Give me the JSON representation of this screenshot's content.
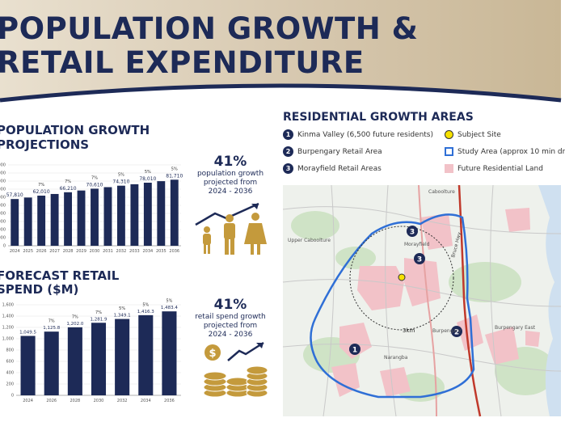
{
  "header": {
    "title_line1": "POPULATION GROWTH &",
    "title_line2": "RETAIL EXPENDITURE"
  },
  "population": {
    "title_line1": "POPULATION GROWTH",
    "title_line2": "PROJECTIONS",
    "stat": {
      "value": "41%",
      "line1": "population growth",
      "line2": "projected from",
      "line3": "2024 - 2036"
    }
  },
  "retail": {
    "title_line1": "FORECAST RETAIL",
    "title_line2": "SPEND ($M)",
    "stat": {
      "value": "41%",
      "line1": "retail spend growth",
      "line2": "projected from",
      "line3": "2024 - 2036"
    }
  },
  "residential": {
    "title": "RESIDENTIAL GROWTH AREAS",
    "legend": [
      {
        "symbol": "1",
        "label": "Kinma Valley (6,500 future residents)"
      },
      {
        "symbol": "2",
        "label": "Burpengary Retail Area"
      },
      {
        "symbol": "3",
        "label": "Morayfield Retail Areas"
      },
      {
        "symbol": "subject-site",
        "label": "Subject Site"
      },
      {
        "symbol": "study-area",
        "label": "Study Area (approx 10 min dr"
      },
      {
        "symbol": "future-residential",
        "label": "Future Residential Land"
      }
    ],
    "map_labels": {
      "caboolture": "Caboolture",
      "upper_caboolture": "Upper Caboolture",
      "morayfield": "Morayfield",
      "burpengary": "Burpengary",
      "burpengary_east": "Burpengary East",
      "narangba": "Narangba",
      "radius": "3km",
      "highway": "Bruce Hwy"
    },
    "markers": [
      "1",
      "2",
      "3",
      "3"
    ]
  },
  "colors": {
    "navy": "#1d2a57",
    "gold": "#c49a3c",
    "pink": "#f2c2c8",
    "study_blue": "#2f6fd6"
  },
  "chart_data": [
    {
      "type": "bar",
      "title": "POPULATION GROWTH PROJECTIONS",
      "categories": [
        "2024",
        "2025",
        "2026",
        "2027",
        "2028",
        "2029",
        "2030",
        "2031",
        "2032",
        "2033",
        "2034",
        "2035",
        "2036"
      ],
      "values": [
        57810,
        59650,
        62010,
        64050,
        66210,
        68350,
        70610,
        72500,
        74310,
        76100,
        78010,
        79900,
        81710
      ],
      "value_labels": [
        "57,810",
        "",
        "62,010",
        "",
        "66,210",
        "",
        "70,610",
        "",
        "74,310",
        "",
        "78,010",
        "",
        "81,710"
      ],
      "growth_labels": [
        "",
        "",
        "7%",
        "",
        "7%",
        "",
        "7%",
        "",
        "5%",
        "",
        "5%",
        "",
        "5%"
      ],
      "yticks": [
        "0",
        "10,000",
        "20,000",
        "30,000",
        "40,000",
        "50,000",
        "60,000",
        "70,000",
        "80,000",
        "90,000",
        "100,000"
      ],
      "ylim": [
        0,
        100000
      ]
    },
    {
      "type": "bar",
      "title": "FORECAST RETAIL SPEND ($M)",
      "categories": [
        "2024",
        "2026",
        "2028",
        "2030",
        "2032",
        "2034",
        "2036"
      ],
      "values": [
        1049.5,
        1125.8,
        1202.0,
        1281.9,
        1349.1,
        1416.3,
        1483.4
      ],
      "value_labels": [
        "1,049.5",
        "1,125.8",
        "1,202.0",
        "1,281.9",
        "1,349.1",
        "1,416.3",
        "1,483.4"
      ],
      "growth_labels": [
        "",
        "7%",
        "7%",
        "7%",
        "5%",
        "5%",
        "5%"
      ],
      "yticks": [
        "0",
        "200",
        "400",
        "600",
        "800",
        "1,000",
        "1,200",
        "1,400",
        "1,600"
      ],
      "ylim": [
        0,
        1600
      ]
    }
  ]
}
